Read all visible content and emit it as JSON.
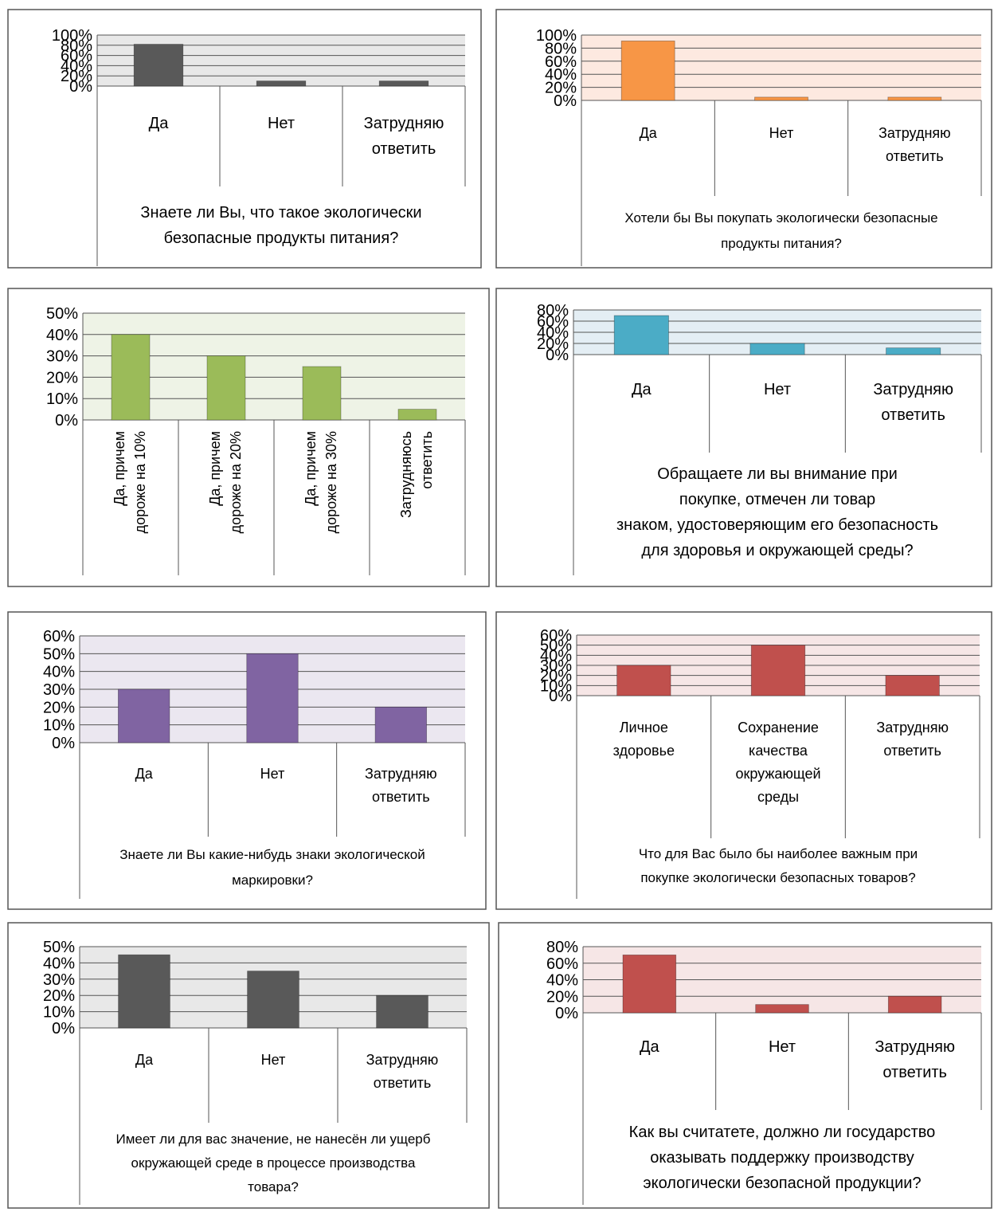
{
  "charts": [
    {
      "type": "bar",
      "categories": [
        [
          "Да"
        ],
        [
          "Нет"
        ],
        [
          "Затрудняю",
          "ответить"
        ]
      ],
      "values": [
        82,
        10,
        10
      ],
      "ylim": [
        0,
        100
      ],
      "yticks": [
        "0%",
        "20%",
        "40%",
        "60%",
        "80%",
        "100%"
      ],
      "xlabel": [
        "Знаете ли Вы, что такое экологически",
        "безопасные продукты питания?"
      ],
      "bar_color": "#595959",
      "plot_bg": "#e8e8e8"
    },
    {
      "type": "bar",
      "categories": [
        [
          "Да"
        ],
        [
          "Нет"
        ],
        [
          "Затрудняю",
          "ответить"
        ]
      ],
      "values": [
        91,
        5,
        5
      ],
      "ylim": [
        0,
        100
      ],
      "yticks": [
        "0%",
        "20%",
        "40%",
        "60%",
        "80%",
        "100%"
      ],
      "xlabel": [
        "Хотели бы Вы покупать экологически безопасные",
        "продукты питания?"
      ],
      "bar_color": "#f79646",
      "plot_bg": "#fde9e0"
    },
    {
      "type": "bar",
      "categories": [
        [
          "Да, причем",
          "дороже на 10%"
        ],
        [
          "Да, причем",
          "дороже на 20%"
        ],
        [
          "Да, причем",
          "дороже на 30%"
        ],
        [
          "Затрудняюсь",
          "ответить"
        ]
      ],
      "values": [
        40,
        30,
        25,
        5
      ],
      "ylim": [
        0,
        50
      ],
      "yticks": [
        "0%",
        "10%",
        "20%",
        "30%",
        "40%",
        "50%"
      ],
      "xlabel": [],
      "bar_color": "#9bbb59",
      "plot_bg": "#eef3e6"
    },
    {
      "type": "bar",
      "categories": [
        [
          "Да"
        ],
        [
          "Нет"
        ],
        [
          "Затрудняю",
          "ответить"
        ]
      ],
      "values": [
        70,
        20,
        12
      ],
      "ylim": [
        0,
        80
      ],
      "yticks": [
        "0%",
        "20%",
        "40%",
        "60%",
        "80%"
      ],
      "xlabel": [
        "Обращаете ли вы внимание при",
        "покупке, отмечен ли товар",
        "знаком, удостоверяющим его безопасность",
        "для здоровья и окружающей среды?"
      ],
      "bar_color": "#4bacc6",
      "plot_bg": "#e4eef4"
    },
    {
      "type": "bar",
      "categories": [
        [
          "Да"
        ],
        [
          "Нет"
        ],
        [
          "Затрудняю",
          "ответить"
        ]
      ],
      "values": [
        30,
        50,
        20
      ],
      "ylim": [
        0,
        60
      ],
      "yticks": [
        "0%",
        "10%",
        "20%",
        "30%",
        "40%",
        "50%",
        "60%"
      ],
      "xlabel": [
        "Знаете ли Вы какие-нибудь знаки экологической",
        "маркировки?"
      ],
      "bar_color": "#8064a2",
      "plot_bg": "#ebe7f0"
    },
    {
      "type": "bar",
      "categories": [
        [
          "Личное",
          "здоровье"
        ],
        [
          "Сохранение",
          "качества",
          "окружающей",
          "среды"
        ],
        [
          "Затрудняю",
          "ответить"
        ]
      ],
      "values": [
        30,
        50,
        20
      ],
      "ylim": [
        0,
        60
      ],
      "yticks": [
        "0%",
        "10%",
        "20%",
        "30%",
        "40%",
        "50%",
        "60%"
      ],
      "xlabel": [
        "Что для Вас было бы наиболее важным при",
        "покупке экологически безопасных товаров?"
      ],
      "bar_color": "#c0504d",
      "plot_bg": "#f6e6e6"
    },
    {
      "type": "bar",
      "categories": [
        [
          "Да"
        ],
        [
          "Нет"
        ],
        [
          "Затрудняю",
          "ответить"
        ]
      ],
      "values": [
        45,
        35,
        20
      ],
      "ylim": [
        0,
        50
      ],
      "yticks": [
        "0%",
        "10%",
        "20%",
        "30%",
        "40%",
        "50%"
      ],
      "xlabel": [
        "Имеет ли для вас значение, не нанесён ли ущерб",
        "окружающей среде в процессе производства",
        "товара?"
      ],
      "bar_color": "#595959",
      "plot_bg": "#e8e8e8"
    },
    {
      "type": "bar",
      "categories": [
        [
          "Да"
        ],
        [
          "Нет"
        ],
        [
          "Затрудняю",
          "ответить"
        ]
      ],
      "values": [
        70,
        10,
        20
      ],
      "ylim": [
        0,
        80
      ],
      "yticks": [
        "0%",
        "20%",
        "40%",
        "60%",
        "80%"
      ],
      "xlabel": [
        "Как вы считатете, должно ли государство",
        "оказывать поддержку производству",
        "экологически безопасной продукции?"
      ],
      "bar_color": "#c0504d",
      "plot_bg": "#f6e6e6"
    }
  ]
}
